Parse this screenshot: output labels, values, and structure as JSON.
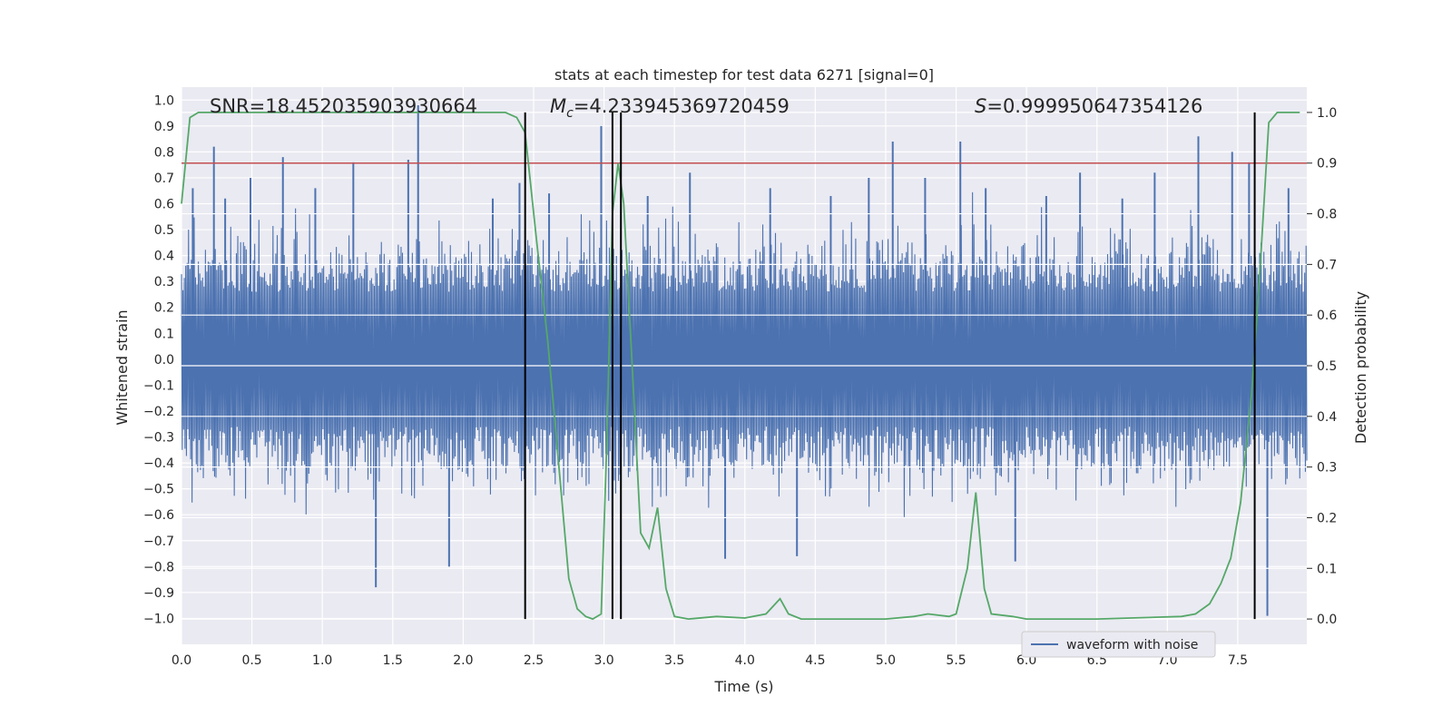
{
  "chart_data": {
    "type": "line",
    "title": "stats at each timestep for test data 6271 [signal=0]",
    "xlabel": "Time (s)",
    "ylabel": "Whitened strain",
    "y2label": "Detection probability",
    "xlim": [
      0,
      7.99
    ],
    "ylim": [
      -1.1,
      1.05
    ],
    "y2lim": [
      -0.05,
      1.05
    ],
    "x_ticks": [
      0.0,
      0.5,
      1.0,
      1.5,
      2.0,
      2.5,
      3.0,
      3.5,
      4.0,
      4.5,
      5.0,
      5.5,
      6.0,
      6.5,
      7.0,
      7.5
    ],
    "x_tick_labels": [
      "0.0",
      "0.5",
      "1.0",
      "1.5",
      "2.0",
      "2.5",
      "3.0",
      "3.5",
      "4.0",
      "4.5",
      "5.0",
      "5.5",
      "6.0",
      "6.5",
      "7.0",
      "7.5"
    ],
    "y_ticks": [
      1.0,
      0.9,
      0.8,
      0.7,
      0.6,
      0.5,
      0.4,
      0.3,
      0.2,
      0.1,
      0.0,
      -0.1,
      -0.2,
      -0.3,
      -0.4,
      -0.5,
      -0.6,
      -0.7,
      -0.8,
      -0.9,
      -1.0
    ],
    "y_tick_labels": [
      "1.0",
      "0.9",
      "0.8",
      "0.7",
      "0.6",
      "0.5",
      "0.4",
      "0.3",
      "0.2",
      "0.1",
      "0.0",
      "−0.1",
      "−0.2",
      "−0.3",
      "−0.4",
      "−0.5",
      "−0.6",
      "−0.7",
      "−0.8",
      "−0.9",
      "−1.0"
    ],
    "y2_ticks": [
      1.0,
      0.9,
      0.8,
      0.7,
      0.6,
      0.5,
      0.4,
      0.3,
      0.2,
      0.1,
      0.0
    ],
    "y2_tick_labels": [
      "1.0",
      "0.9",
      "0.8",
      "0.7",
      "0.6",
      "0.5",
      "0.4",
      "0.3",
      "0.2",
      "0.1",
      "0.0"
    ],
    "grid": true,
    "annotations": {
      "snr": "SNR=18.452035903930664",
      "mc_symbol": "M",
      "mc_subscript": "c",
      "mc_value": "=4.233945369720459",
      "s_symbol": "S",
      "s_value": "=0.999950647354126"
    },
    "threshold_probability": 0.9,
    "vertical_lines_time": [
      2.44,
      3.06,
      3.12,
      7.62
    ],
    "legend": {
      "label": "waveform with noise",
      "position": "lower-right"
    },
    "series": [
      {
        "name": "waveform with noise",
        "color": "#4c72b0",
        "axis": "left",
        "sample_count": 1600,
        "baseline_amplitude": 0.26,
        "spike_times": [
          0.08,
          0.23,
          0.31,
          0.49,
          0.72,
          0.95,
          1.22,
          1.38,
          1.61,
          1.68,
          1.9,
          2.21,
          2.4,
          2.61,
          2.98,
          3.06,
          3.31,
          3.61,
          3.86,
          4.18,
          4.37,
          4.61,
          4.88,
          5.05,
          5.28,
          5.53,
          5.71,
          5.92,
          6.14,
          6.38,
          6.68,
          6.91,
          7.22,
          7.46,
          7.58,
          7.71,
          7.86
        ],
        "spike_values": [
          0.66,
          0.82,
          0.62,
          0.7,
          0.78,
          0.66,
          0.76,
          -0.88,
          0.77,
          0.98,
          -0.8,
          0.62,
          0.68,
          0.64,
          0.9,
          -0.62,
          0.63,
          0.72,
          -0.77,
          0.66,
          -0.76,
          0.63,
          0.7,
          0.84,
          0.7,
          0.84,
          0.66,
          -0.78,
          0.63,
          0.72,
          0.62,
          0.72,
          0.86,
          0.8,
          0.76,
          -0.99,
          0.66
        ]
      },
      {
        "name": "detection probability",
        "color": "#55a868",
        "axis": "right",
        "x": [
          0.0,
          0.06,
          0.12,
          0.2,
          2.1,
          2.3,
          2.38,
          2.44,
          2.52,
          2.6,
          2.68,
          2.75,
          2.81,
          2.87,
          2.92,
          2.98,
          3.02,
          3.06,
          3.1,
          3.14,
          3.2,
          3.26,
          3.32,
          3.38,
          3.44,
          3.5,
          3.6,
          3.8,
          4.0,
          4.15,
          4.25,
          4.31,
          4.4,
          5.0,
          5.2,
          5.3,
          5.45,
          5.5,
          5.58,
          5.64,
          5.7,
          5.75,
          5.9,
          6.0,
          6.5,
          7.1,
          7.2,
          7.3,
          7.38,
          7.45,
          7.52,
          7.6,
          7.66,
          7.72,
          7.78,
          7.84,
          7.94
        ],
        "y": [
          0.82,
          0.99,
          1.0,
          1.0,
          1.0,
          1.0,
          0.99,
          0.96,
          0.75,
          0.55,
          0.3,
          0.08,
          0.02,
          0.005,
          0.0,
          0.01,
          0.35,
          0.8,
          0.9,
          0.82,
          0.5,
          0.17,
          0.14,
          0.22,
          0.06,
          0.005,
          0.0,
          0.005,
          0.002,
          0.01,
          0.04,
          0.01,
          0.0,
          0.0,
          0.005,
          0.01,
          0.005,
          0.01,
          0.1,
          0.25,
          0.06,
          0.01,
          0.005,
          0.0,
          0.0,
          0.005,
          0.01,
          0.03,
          0.07,
          0.12,
          0.23,
          0.45,
          0.7,
          0.98,
          1.0,
          1.0,
          1.0
        ]
      },
      {
        "name": "threshold",
        "color": "#c44e52",
        "axis": "right",
        "value": 0.9
      }
    ]
  }
}
